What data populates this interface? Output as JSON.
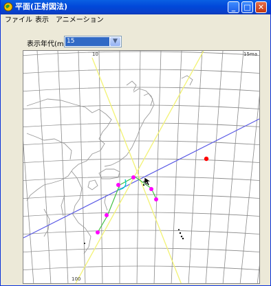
{
  "window": {
    "title": "平面(正射図法)",
    "buttons": {
      "minimize": "_",
      "maximize": "□",
      "close": "✕"
    }
  },
  "menu": {
    "items": [
      {
        "label": "ファイル"
      },
      {
        "label": "表示"
      },
      {
        "label": "アニメーション"
      }
    ]
  },
  "controls": {
    "year_label": "表示年代(ma)",
    "year_value": "15",
    "dropdown_icon": "chevron-down-icon"
  },
  "map": {
    "degree_labels": {
      "top_left": "10",
      "top_right": "15ma",
      "bottom_left": "100"
    },
    "colors": {
      "grid": "#8a8a8a",
      "coast": "#9a9a9a",
      "blue_line": "#5a5ae6",
      "yellow_line": "#f3f37a",
      "magenta_points": "#ff00ff",
      "red_point": "#ff0000",
      "green_path": "#40c040",
      "cyan_arc": "#00c8c8"
    }
  }
}
